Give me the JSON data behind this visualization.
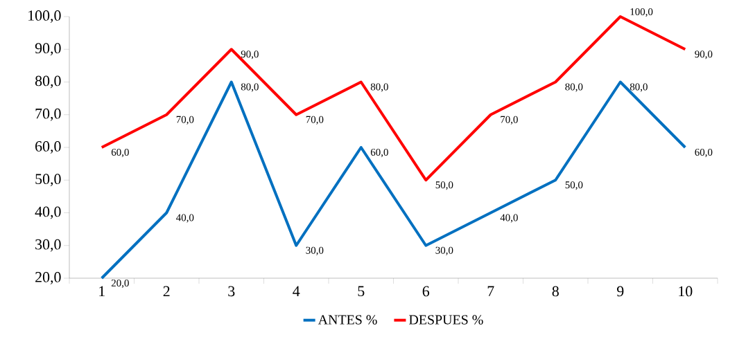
{
  "chart_data": {
    "type": "line",
    "categories": [
      "1",
      "2",
      "3",
      "4",
      "5",
      "6",
      "7",
      "8",
      "9",
      "10"
    ],
    "series": [
      {
        "name": "ANTES %",
        "color": "#0070c0",
        "values": [
          20,
          40,
          80,
          30,
          60,
          30,
          40,
          50,
          80,
          60
        ],
        "value_labels": [
          "20,0",
          "40,0",
          "80,0",
          "30,0",
          "60,0",
          "30,0",
          "40,0",
          "50,0",
          "80,0",
          "60,0"
        ]
      },
      {
        "name": "DESPUES %",
        "color": "#ff0000",
        "values": [
          60,
          70,
          90,
          70,
          80,
          50,
          70,
          80,
          100,
          90
        ],
        "value_labels": [
          "60,0",
          "70,0",
          "90,0",
          "70,0",
          "80,0",
          "50,0",
          "70,0",
          "80,0",
          "100,0",
          "90,0"
        ]
      }
    ],
    "ylim": [
      20,
      100
    ],
    "yticks": [
      {
        "value": 20,
        "label": "20,0"
      },
      {
        "value": 30,
        "label": "30,0"
      },
      {
        "value": 40,
        "label": "40,0"
      },
      {
        "value": 50,
        "label": "50,0"
      },
      {
        "value": 60,
        "label": "60,0"
      },
      {
        "value": 70,
        "label": "70,0"
      },
      {
        "value": 80,
        "label": "80,0"
      },
      {
        "value": 90,
        "label": "90,0"
      },
      {
        "value": 100,
        "label": "100,0"
      }
    ],
    "grid": false,
    "legend": "bottom",
    "marker": "none",
    "line_style": "solid"
  }
}
